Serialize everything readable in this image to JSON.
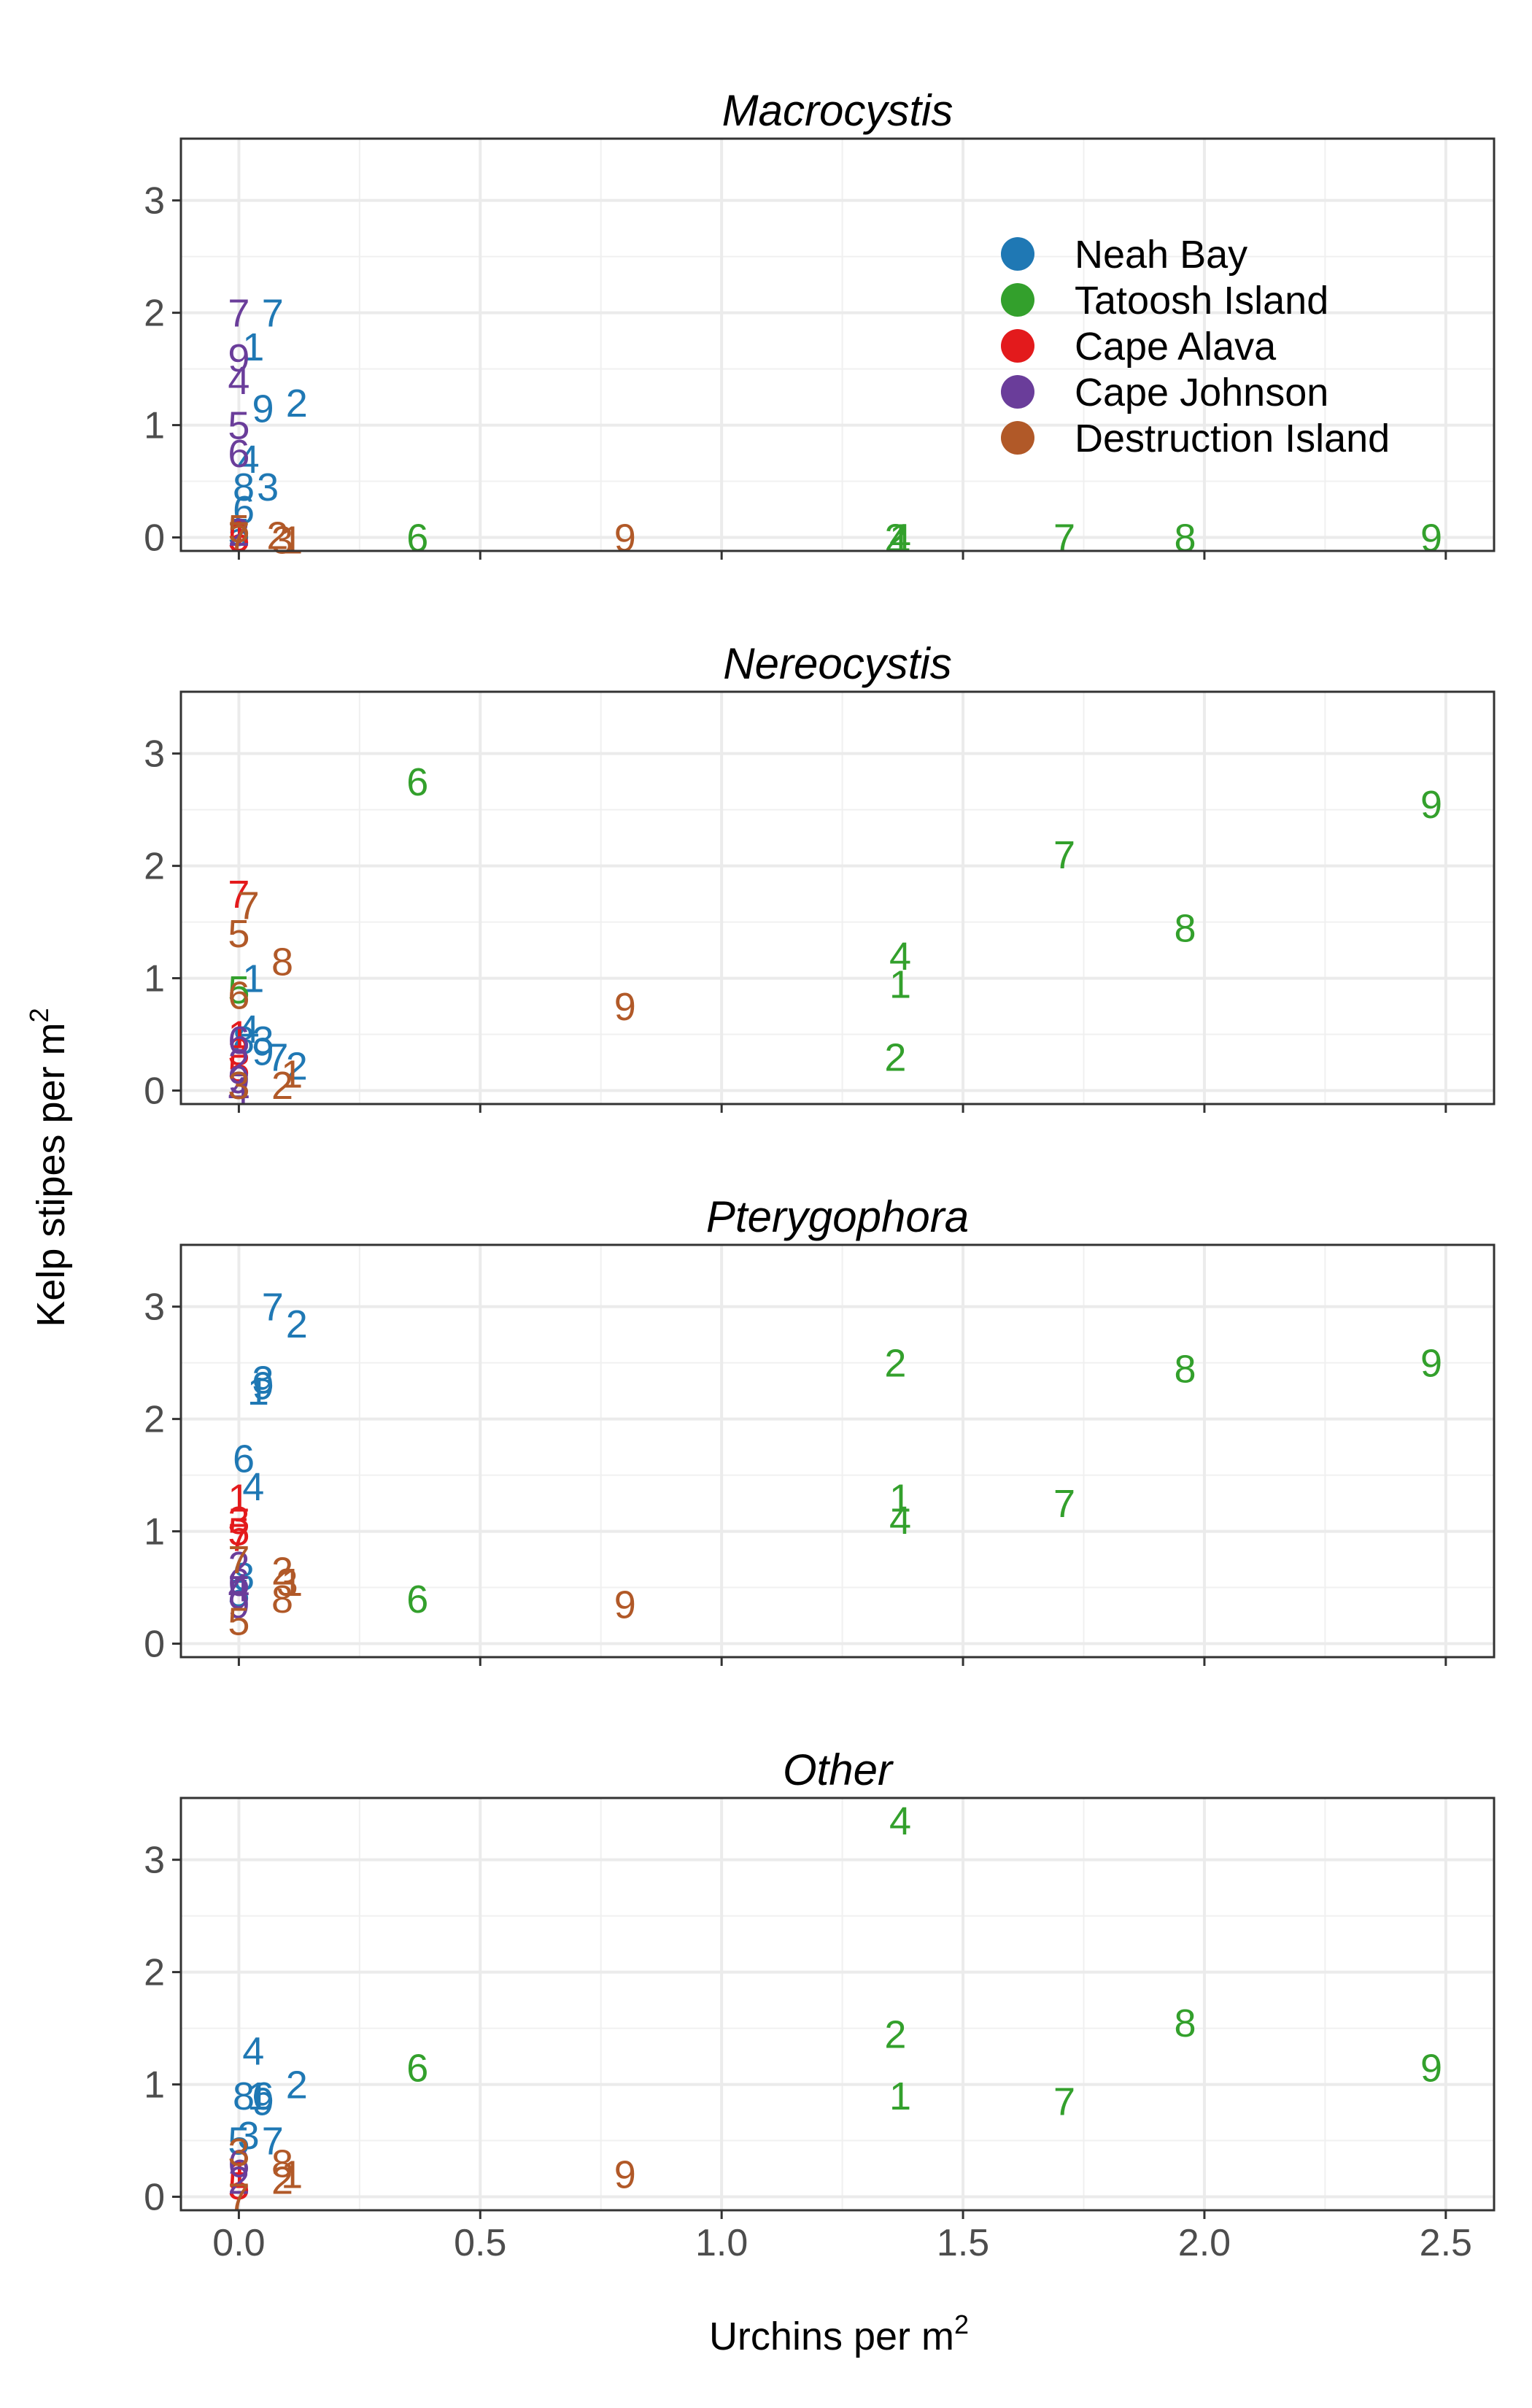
{
  "chart_data": {
    "type": "scatter",
    "point_style": "text labels (digits)",
    "xlabel": "Urchins per m",
    "xlabel_sup": "2",
    "ylabel": "Kelp stipes per m",
    "ylabel_sup": "2",
    "xlim": [
      -0.12,
      2.6
    ],
    "ylim": [
      -0.12,
      3.55
    ],
    "x_ticks": [
      0.0,
      0.5,
      1.0,
      1.5,
      2.0,
      2.5
    ],
    "x_tick_labels": [
      "0.0",
      "0.5",
      "1.0",
      "1.5",
      "2.0",
      "2.5"
    ],
    "y_ticks": [
      0,
      1,
      2,
      3
    ],
    "y_tick_labels": [
      "0",
      "1",
      "2",
      "3"
    ],
    "grid": true,
    "legend_position": "top-right inside first panel",
    "colors": {
      "Neah Bay": "#1f78b4",
      "Tatoosh Island": "#33a02c",
      "Cape Alava": "#e31a1c",
      "Cape Johnson": "#6a3d9a",
      "Destruction Island": "#b15928"
    },
    "legend": [
      "Neah Bay",
      "Tatoosh Island",
      "Cape Alava",
      "Cape Johnson",
      "Destruction Island"
    ],
    "panels": [
      {
        "title": "Macrocystis",
        "series": [
          {
            "name": "Neah Bay",
            "points": [
              {
                "label": "7",
                "x": 0.07,
                "y": 2.0
              },
              {
                "label": "1",
                "x": 0.03,
                "y": 1.7
              },
              {
                "label": "2",
                "x": 0.12,
                "y": 1.2
              },
              {
                "label": "9",
                "x": 0.05,
                "y": 1.15
              },
              {
                "label": "4",
                "x": 0.02,
                "y": 0.7
              },
              {
                "label": "8",
                "x": 0.01,
                "y": 0.45
              },
              {
                "label": "3",
                "x": 0.06,
                "y": 0.45
              },
              {
                "label": "6",
                "x": 0.01,
                "y": 0.25
              },
              {
                "label": "5",
                "x": 0.0,
                "y": 0.05
              }
            ]
          },
          {
            "name": "Tatoosh Island",
            "points": [
              {
                "label": "6",
                "x": 0.37,
                "y": 0.0
              },
              {
                "label": "2",
                "x": 1.36,
                "y": 0.0
              },
              {
                "label": "1",
                "x": 1.37,
                "y": 0.0
              },
              {
                "label": "4",
                "x": 1.37,
                "y": 0.0
              },
              {
                "label": "7",
                "x": 1.71,
                "y": 0.0
              },
              {
                "label": "8",
                "x": 1.96,
                "y": 0.0
              },
              {
                "label": "9",
                "x": 2.47,
                "y": 0.0
              }
            ]
          },
          {
            "name": "Cape Alava",
            "points": [
              {
                "label": "1",
                "x": 0.0,
                "y": 0.05
              },
              {
                "label": "5",
                "x": 0.0,
                "y": 0.0
              }
            ]
          },
          {
            "name": "Cape Johnson",
            "points": [
              {
                "label": "7",
                "x": 0.0,
                "y": 2.0
              },
              {
                "label": "9",
                "x": 0.0,
                "y": 1.6
              },
              {
                "label": "4",
                "x": 0.0,
                "y": 1.4
              },
              {
                "label": "5",
                "x": 0.0,
                "y": 1.0
              },
              {
                "label": "6",
                "x": 0.0,
                "y": 0.75
              },
              {
                "label": "2",
                "x": 0.0,
                "y": 0.05
              }
            ]
          },
          {
            "name": "Destruction Island",
            "points": [
              {
                "label": "9",
                "x": 0.8,
                "y": 0.0
              },
              {
                "label": "2",
                "x": 0.08,
                "y": 0.02
              },
              {
                "label": "3",
                "x": 0.09,
                "y": -0.02
              },
              {
                "label": "1",
                "x": 0.11,
                "y": -0.02
              },
              {
                "label": "7",
                "x": 0.0,
                "y": 0.02
              },
              {
                "label": "5",
                "x": 0.0,
                "y": 0.08
              }
            ]
          }
        ]
      },
      {
        "title": "Nereocystis",
        "series": [
          {
            "name": "Neah Bay",
            "points": [
              {
                "label": "1",
                "x": 0.03,
                "y": 1.0
              },
              {
                "label": "4",
                "x": 0.02,
                "y": 0.55
              },
              {
                "label": "3",
                "x": 0.05,
                "y": 0.45
              },
              {
                "label": "9",
                "x": 0.05,
                "y": 0.35
              },
              {
                "label": "7",
                "x": 0.08,
                "y": 0.3
              },
              {
                "label": "2",
                "x": 0.12,
                "y": 0.22
              },
              {
                "label": "8",
                "x": 0.01,
                "y": 0.45
              }
            ]
          },
          {
            "name": "Tatoosh Island",
            "points": [
              {
                "label": "6",
                "x": 0.37,
                "y": 2.75
              },
              {
                "label": "9",
                "x": 2.47,
                "y": 2.55
              },
              {
                "label": "7",
                "x": 1.71,
                "y": 2.1
              },
              {
                "label": "8",
                "x": 1.96,
                "y": 1.45
              },
              {
                "label": "4",
                "x": 1.37,
                "y": 1.2
              },
              {
                "label": "1",
                "x": 1.37,
                "y": 0.95
              },
              {
                "label": "2",
                "x": 1.36,
                "y": 0.3
              },
              {
                "label": "5",
                "x": 0.0,
                "y": 0.9
              }
            ]
          },
          {
            "name": "Cape Alava",
            "points": [
              {
                "label": "7",
                "x": 0.0,
                "y": 1.75
              },
              {
                "label": "1",
                "x": 0.0,
                "y": 0.5
              },
              {
                "label": "3",
                "x": 0.0,
                "y": 0.35
              },
              {
                "label": "5",
                "x": 0.0,
                "y": 0.2
              }
            ]
          },
          {
            "name": "Cape Johnson",
            "points": [
              {
                "label": "6",
                "x": 0.0,
                "y": 0.45
              },
              {
                "label": "2",
                "x": 0.0,
                "y": 0.25
              },
              {
                "label": "9",
                "x": 0.0,
                "y": 0.1
              },
              {
                "label": "4",
                "x": 0.0,
                "y": 0.0
              }
            ]
          },
          {
            "name": "Destruction Island",
            "points": [
              {
                "label": "7",
                "x": 0.02,
                "y": 1.65
              },
              {
                "label": "5",
                "x": 0.0,
                "y": 1.4
              },
              {
                "label": "8",
                "x": 0.09,
                "y": 1.15
              },
              {
                "label": "6",
                "x": 0.0,
                "y": 0.85
              },
              {
                "label": "9",
                "x": 0.8,
                "y": 0.75
              },
              {
                "label": "1",
                "x": 0.11,
                "y": 0.15
              },
              {
                "label": "2",
                "x": 0.09,
                "y": 0.05
              },
              {
                "label": "3",
                "x": 0.0,
                "y": 0.05
              }
            ]
          }
        ]
      },
      {
        "title": "Pterygophora",
        "series": [
          {
            "name": "Neah Bay",
            "points": [
              {
                "label": "7",
                "x": 0.07,
                "y": 3.0
              },
              {
                "label": "2",
                "x": 0.12,
                "y": 2.85
              },
              {
                "label": "3",
                "x": 0.05,
                "y": 2.35
              },
              {
                "label": "9",
                "x": 0.05,
                "y": 2.3
              },
              {
                "label": "1",
                "x": 0.04,
                "y": 2.25
              },
              {
                "label": "6",
                "x": 0.01,
                "y": 1.65
              },
              {
                "label": "4",
                "x": 0.03,
                "y": 1.4
              },
              {
                "label": "8",
                "x": 0.01,
                "y": 0.6
              },
              {
                "label": "5",
                "x": 0.0,
                "y": 0.45
              }
            ]
          },
          {
            "name": "Tatoosh Island",
            "points": [
              {
                "label": "2",
                "x": 1.36,
                "y": 2.5
              },
              {
                "label": "8",
                "x": 1.96,
                "y": 2.45
              },
              {
                "label": "9",
                "x": 2.47,
                "y": 2.5
              },
              {
                "label": "1",
                "x": 1.37,
                "y": 1.3
              },
              {
                "label": "7",
                "x": 1.71,
                "y": 1.25
              },
              {
                "label": "4",
                "x": 1.37,
                "y": 1.1
              },
              {
                "label": "6",
                "x": 0.37,
                "y": 0.4
              }
            ]
          },
          {
            "name": "Cape Alava",
            "points": [
              {
                "label": "1",
                "x": 0.0,
                "y": 1.3
              },
              {
                "label": "3",
                "x": 0.0,
                "y": 1.1
              },
              {
                "label": "5",
                "x": 0.0,
                "y": 1.0
              },
              {
                "label": "7",
                "x": 0.0,
                "y": 0.95
              }
            ]
          },
          {
            "name": "Cape Johnson",
            "points": [
              {
                "label": "2",
                "x": 0.0,
                "y": 0.7
              },
              {
                "label": "6",
                "x": 0.0,
                "y": 0.55
              },
              {
                "label": "4",
                "x": 0.0,
                "y": 0.5
              },
              {
                "label": "9",
                "x": 0.0,
                "y": 0.35
              }
            ]
          },
          {
            "name": "Destruction Island",
            "points": [
              {
                "label": "2",
                "x": 0.09,
                "y": 0.65
              },
              {
                "label": "3",
                "x": 0.1,
                "y": 0.55
              },
              {
                "label": "1",
                "x": 0.11,
                "y": 0.55
              },
              {
                "label": "8",
                "x": 0.09,
                "y": 0.4
              },
              {
                "label": "9",
                "x": 0.8,
                "y": 0.35
              },
              {
                "label": "7",
                "x": 0.0,
                "y": 0.75
              },
              {
                "label": "5",
                "x": 0.0,
                "y": 0.2
              }
            ]
          }
        ]
      },
      {
        "title": "Other",
        "series": [
          {
            "name": "Neah Bay",
            "points": [
              {
                "label": "4",
                "x": 0.03,
                "y": 1.3
              },
              {
                "label": "2",
                "x": 0.12,
                "y": 1.0
              },
              {
                "label": "8",
                "x": 0.01,
                "y": 0.9
              },
              {
                "label": "1",
                "x": 0.04,
                "y": 0.9
              },
              {
                "label": "6",
                "x": 0.05,
                "y": 0.9
              },
              {
                "label": "9",
                "x": 0.05,
                "y": 0.85
              },
              {
                "label": "3",
                "x": 0.02,
                "y": 0.55
              },
              {
                "label": "7",
                "x": 0.07,
                "y": 0.5
              },
              {
                "label": "5",
                "x": 0.0,
                "y": 0.5
              }
            ]
          },
          {
            "name": "Tatoosh Island",
            "points": [
              {
                "label": "4",
                "x": 1.37,
                "y": 3.35
              },
              {
                "label": "8",
                "x": 1.96,
                "y": 1.55
              },
              {
                "label": "2",
                "x": 1.36,
                "y": 1.45
              },
              {
                "label": "6",
                "x": 0.37,
                "y": 1.15
              },
              {
                "label": "9",
                "x": 2.47,
                "y": 1.15
              },
              {
                "label": "1",
                "x": 1.37,
                "y": 0.9
              },
              {
                "label": "7",
                "x": 1.71,
                "y": 0.85
              }
            ]
          },
          {
            "name": "Cape Alava",
            "points": [
              {
                "label": "1",
                "x": 0.0,
                "y": 0.2
              },
              {
                "label": "5",
                "x": 0.0,
                "y": 0.1
              }
            ]
          },
          {
            "name": "Cape Johnson",
            "points": [
              {
                "label": "6",
                "x": 0.0,
                "y": 0.3
              },
              {
                "label": "2",
                "x": 0.0,
                "y": 0.15
              }
            ]
          },
          {
            "name": "Destruction Island",
            "points": [
              {
                "label": "3",
                "x": 0.0,
                "y": 0.4
              },
              {
                "label": "8",
                "x": 0.09,
                "y": 0.3
              },
              {
                "label": "1",
                "x": 0.11,
                "y": 0.2
              },
              {
                "label": "2",
                "x": 0.09,
                "y": 0.15
              },
              {
                "label": "9",
                "x": 0.8,
                "y": 0.2
              },
              {
                "label": "7",
                "x": 0.0,
                "y": 0.0
              }
            ]
          }
        ]
      }
    ]
  }
}
